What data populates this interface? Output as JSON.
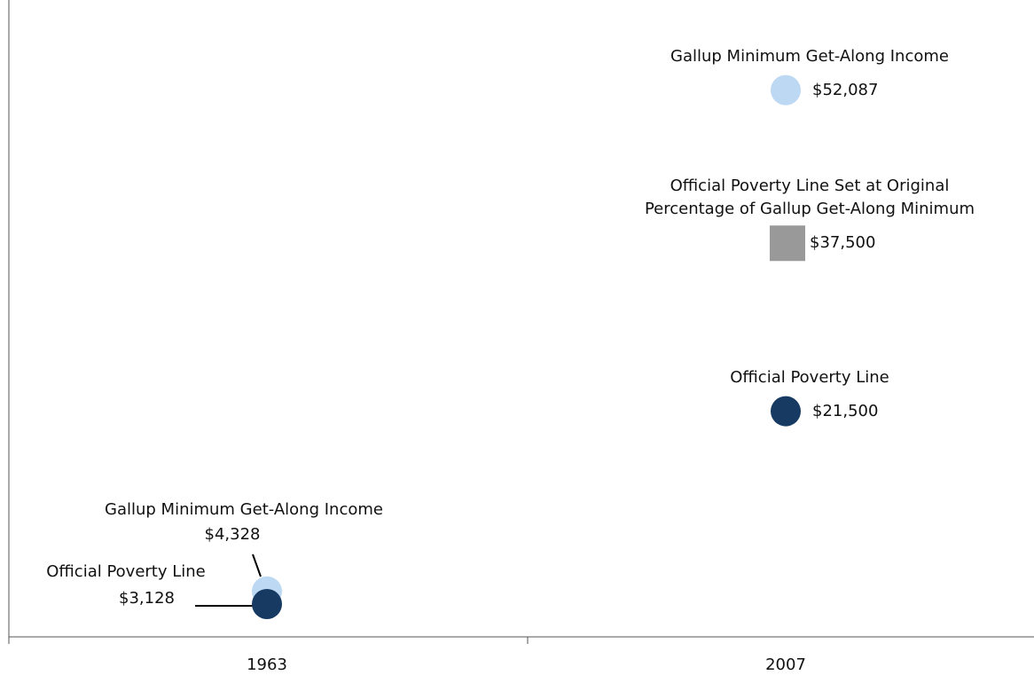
{
  "chart_data": {
    "type": "scatter",
    "categories": [
      "1963",
      "2007"
    ],
    "ylim": [
      0,
      60000
    ],
    "series": [
      {
        "name": "Official Poverty Line",
        "color": "#173a63",
        "marker": "circle",
        "values": [
          3128,
          21500
        ],
        "value_labels": [
          "$3,128",
          "$21,500"
        ]
      },
      {
        "name": "Gallup Minimum Get-Along Income",
        "color": "#bdd8f3",
        "marker": "circle",
        "values": [
          4328,
          52087
        ],
        "value_labels": [
          "$4,328",
          "$52,087"
        ]
      },
      {
        "name": "Official Poverty Line Set at Original Percentage of Gallup Get-Along Minimum",
        "color": "#999999",
        "marker": "square",
        "values": [
          null,
          37500
        ],
        "value_labels": [
          null,
          "$37,500"
        ]
      }
    ]
  }
}
